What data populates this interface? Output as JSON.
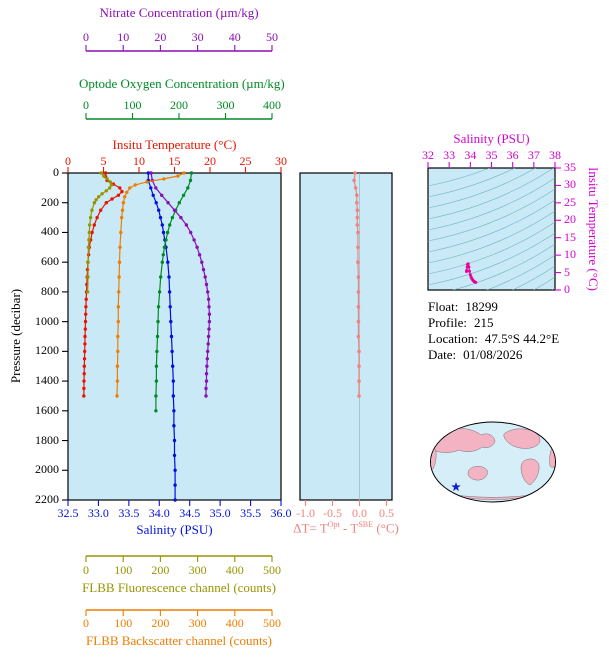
{
  "colors": {
    "nitrate": "#8a0fb4",
    "oxygen": "#008a25",
    "temperature": "#e81400",
    "salinity": "#0011dd",
    "fluorescence": "#989400",
    "backscatter": "#ef7d00",
    "delta_t": "#f2837c",
    "ts_axis": "#d400d4",
    "ts_curve": "#e80296",
    "plot_bg": "#c9e9f6",
    "contour": "#74b4c8",
    "frame": "#000000",
    "map_land": "#f3b3c3",
    "map_ocean": "#d6eef8",
    "star": "#1520c8"
  },
  "axes": {
    "nitrate": {
      "title": "Nitrate Concentration (µm/kg)",
      "ticks": [
        "0",
        "10",
        "20",
        "30",
        "40",
        "50"
      ]
    },
    "oxygen": {
      "title": "Optode Oxygen Concentration (µm/kg)",
      "ticks": [
        "0",
        "100",
        "200",
        "300",
        "400"
      ]
    },
    "temperature": {
      "title": "Insitu Temperature (°C)",
      "ticks": [
        "0",
        "5",
        "10",
        "15",
        "20",
        "25",
        "30"
      ]
    },
    "pressure": {
      "title": "Pressure (decibar)",
      "ticks": [
        "0",
        "200",
        "400",
        "600",
        "800",
        "1000",
        "1200",
        "1400",
        "1600",
        "1800",
        "2000",
        "2200"
      ]
    },
    "salinity": {
      "title": "Salinity (PSU)",
      "ticks": [
        "32.5",
        "33.0",
        "33.5",
        "34.0",
        "34.5",
        "35.0",
        "35.5",
        "36.0"
      ]
    },
    "delta_t": {
      "title_parts": {
        "p1": "ΔT= T",
        "sup1": "Opt",
        "p2": " - T",
        "sup2": "SBE",
        "p3": " (°C)"
      },
      "ticks": [
        "-1.0",
        "-0.5",
        "0.0",
        "0.5"
      ]
    },
    "fluorescence": {
      "title": "FLBB Fluorescence channel (counts)",
      "ticks": [
        "0",
        "100",
        "200",
        "300",
        "400",
        "500"
      ]
    },
    "backscatter": {
      "title": "FLBB Backscatter channel (counts)",
      "ticks": [
        "0",
        "100",
        "200",
        "300",
        "400",
        "500"
      ]
    },
    "ts_salinity": {
      "title": "Salinity (PSU)",
      "ticks": [
        "32",
        "33",
        "34",
        "35",
        "36",
        "37",
        "38"
      ]
    },
    "ts_temperature": {
      "title": "Insitu Temperature (°C)",
      "ticks": [
        "0",
        "5",
        "10",
        "15",
        "20",
        "25",
        "30",
        "35"
      ]
    }
  },
  "info": {
    "float_label": "Float:",
    "float_value": "18299",
    "profile_label": "Profile:",
    "profile_value": "215",
    "location_label": "Location:",
    "location_value": "47.5°S 44.2°E",
    "date_label": "Date:",
    "date_value": "01/08/2026"
  },
  "chart_data": {
    "type": "line",
    "title": "Argo float 18299 profile 215 — vertical profiles, Optode-SBE temperature difference, T-S diagram and location map",
    "y_axis": {
      "label": "Pressure (decibar)",
      "range": [
        0,
        2200
      ],
      "inverted": true,
      "points_format": "[pressure_db, value]"
    },
    "profile_series": [
      {
        "name": "Insitu Temperature",
        "units": "°C",
        "color_key": "temperature",
        "x_range": [
          0,
          30
        ],
        "points": [
          [
            0,
            5.3
          ],
          [
            25,
            5.3
          ],
          [
            50,
            5.5
          ],
          [
            75,
            6.4
          ],
          [
            100,
            7.3
          ],
          [
            125,
            7.6
          ],
          [
            150,
            7.1
          ],
          [
            175,
            6.2
          ],
          [
            200,
            5.4
          ],
          [
            250,
            4.6
          ],
          [
            300,
            4.1
          ],
          [
            350,
            3.7
          ],
          [
            400,
            3.4
          ],
          [
            450,
            3.2
          ],
          [
            500,
            3.0
          ],
          [
            550,
            2.9
          ],
          [
            600,
            2.8
          ],
          [
            650,
            2.75
          ],
          [
            700,
            2.7
          ],
          [
            750,
            2.65
          ],
          [
            800,
            2.6
          ],
          [
            850,
            2.56
          ],
          [
            900,
            2.52
          ],
          [
            950,
            2.49
          ],
          [
            1000,
            2.46
          ],
          [
            1050,
            2.43
          ],
          [
            1100,
            2.4
          ],
          [
            1150,
            2.38
          ],
          [
            1200,
            2.35
          ],
          [
            1250,
            2.33
          ],
          [
            1300,
            2.3
          ],
          [
            1350,
            2.28
          ],
          [
            1400,
            2.26
          ],
          [
            1450,
            2.24
          ],
          [
            1500,
            2.22
          ]
        ]
      },
      {
        "name": "Salinity",
        "units": "PSU",
        "color_key": "salinity",
        "x_range": [
          32.5,
          36.0
        ],
        "points": [
          [
            0,
            33.82
          ],
          [
            50,
            33.82
          ],
          [
            100,
            33.86
          ],
          [
            150,
            33.9
          ],
          [
            200,
            33.95
          ],
          [
            250,
            33.99
          ],
          [
            300,
            34.02
          ],
          [
            350,
            34.05
          ],
          [
            400,
            34.07
          ],
          [
            450,
            34.09
          ],
          [
            500,
            34.11
          ],
          [
            600,
            34.14
          ],
          [
            700,
            34.16
          ],
          [
            800,
            34.17
          ],
          [
            900,
            34.18
          ],
          [
            1000,
            34.19
          ],
          [
            1100,
            34.2
          ],
          [
            1200,
            34.21
          ],
          [
            1300,
            34.22
          ],
          [
            1400,
            34.23
          ],
          [
            1500,
            34.23
          ],
          [
            1600,
            34.24
          ],
          [
            1700,
            34.24
          ],
          [
            1800,
            34.25
          ],
          [
            1900,
            34.25
          ],
          [
            2000,
            34.26
          ],
          [
            2100,
            34.26
          ],
          [
            2200,
            34.26
          ]
        ]
      },
      {
        "name": "Optode Oxygen Concentration",
        "units": "µm/kg",
        "color_key": "oxygen",
        "x_range": [
          0,
          400
        ],
        "points": [
          [
            0,
            232
          ],
          [
            50,
            230
          ],
          [
            100,
            225
          ],
          [
            150,
            217
          ],
          [
            200,
            209
          ],
          [
            250,
            202
          ],
          [
            300,
            196
          ],
          [
            350,
            191
          ],
          [
            400,
            187
          ],
          [
            450,
            184
          ],
          [
            500,
            181
          ],
          [
            550,
            179
          ],
          [
            600,
            177
          ],
          [
            700,
            174
          ],
          [
            800,
            172
          ],
          [
            900,
            170
          ],
          [
            1000,
            169
          ],
          [
            1100,
            168
          ],
          [
            1200,
            167
          ],
          [
            1300,
            166
          ],
          [
            1400,
            166
          ],
          [
            1500,
            165
          ],
          [
            1600,
            165
          ]
        ]
      },
      {
        "name": "Nitrate Concentration",
        "units": "µm/kg",
        "color_key": "nitrate",
        "x_range": [
          0,
          50
        ],
        "points": [
          [
            0,
            19.5
          ],
          [
            50,
            19.8
          ],
          [
            100,
            20.6
          ],
          [
            150,
            22.0
          ],
          [
            200,
            23.5
          ],
          [
            250,
            25.0
          ],
          [
            300,
            26.5
          ],
          [
            350,
            27.8
          ],
          [
            400,
            28.8
          ],
          [
            450,
            29.6
          ],
          [
            500,
            30.3
          ],
          [
            550,
            30.9
          ],
          [
            600,
            31.4
          ],
          [
            650,
            31.8
          ],
          [
            700,
            32.2
          ],
          [
            750,
            32.5
          ],
          [
            800,
            32.8
          ],
          [
            850,
            33.0
          ],
          [
            900,
            33.1
          ],
          [
            950,
            33.2
          ],
          [
            1000,
            33.2
          ],
          [
            1050,
            33.1
          ],
          [
            1100,
            33.0
          ],
          [
            1150,
            32.9
          ],
          [
            1200,
            32.8
          ],
          [
            1250,
            32.7
          ],
          [
            1300,
            32.6
          ],
          [
            1350,
            32.5
          ],
          [
            1400,
            32.5
          ],
          [
            1450,
            32.4
          ],
          [
            1500,
            32.4
          ]
        ]
      },
      {
        "name": "FLBB Fluorescence channel",
        "units": "counts",
        "color_key": "fluorescence",
        "x_range": [
          0,
          500
        ],
        "points": [
          [
            0,
            78
          ],
          [
            20,
            84
          ],
          [
            40,
            92
          ],
          [
            60,
            99
          ],
          [
            80,
            102
          ],
          [
            100,
            98
          ],
          [
            120,
            90
          ],
          [
            140,
            80
          ],
          [
            160,
            72
          ],
          [
            180,
            66
          ],
          [
            200,
            62
          ],
          [
            250,
            56
          ],
          [
            300,
            53
          ],
          [
            350,
            51
          ],
          [
            400,
            50
          ],
          [
            450,
            49
          ],
          [
            500,
            48
          ],
          [
            600,
            47
          ],
          [
            700,
            47
          ],
          [
            800,
            46
          ]
        ]
      },
      {
        "name": "FLBB Backscatter channel",
        "units": "counts",
        "color_key": "backscatter",
        "x_range": [
          0,
          500
        ],
        "points": [
          [
            0,
            272
          ],
          [
            20,
            258
          ],
          [
            40,
            225
          ],
          [
            60,
            185
          ],
          [
            80,
            158
          ],
          [
            100,
            145
          ],
          [
            130,
            138
          ],
          [
            160,
            133
          ],
          [
            200,
            130
          ],
          [
            250,
            128
          ],
          [
            300,
            126
          ],
          [
            400,
            124
          ],
          [
            500,
            122
          ],
          [
            600,
            121
          ],
          [
            700,
            120
          ],
          [
            800,
            119
          ],
          [
            900,
            118
          ],
          [
            1000,
            118
          ],
          [
            1100,
            117
          ],
          [
            1200,
            117
          ],
          [
            1300,
            116
          ],
          [
            1400,
            116
          ],
          [
            1500,
            115
          ]
        ]
      }
    ],
    "delta_t_panel": {
      "x_label": "ΔT = T_Opt - T_SBE (°C)",
      "x_range": [
        -1.0,
        0.5
      ],
      "points_format": "[pressure_db, delta_deg_c]",
      "points": [
        [
          0,
          -0.08
        ],
        [
          50,
          -0.1
        ],
        [
          100,
          -0.07
        ],
        [
          150,
          -0.05
        ],
        [
          200,
          -0.05
        ],
        [
          250,
          -0.04
        ],
        [
          300,
          -0.04
        ],
        [
          350,
          -0.04
        ],
        [
          400,
          -0.03
        ],
        [
          500,
          -0.03
        ],
        [
          600,
          -0.03
        ],
        [
          700,
          -0.02
        ],
        [
          800,
          -0.02
        ],
        [
          900,
          -0.02
        ],
        [
          1000,
          -0.02
        ],
        [
          1100,
          -0.02
        ],
        [
          1200,
          -0.01
        ],
        [
          1300,
          -0.01
        ],
        [
          1400,
          -0.01
        ],
        [
          1500,
          -0.01
        ]
      ]
    },
    "ts_diagram": {
      "x_label": "Salinity (PSU)",
      "x_range": [
        32,
        38
      ],
      "y_label": "Insitu Temperature (°C)",
      "y_range": [
        0,
        35
      ],
      "points_format": "[salinity_psu, temperature_c]",
      "points": [
        [
          33.82,
          5.3
        ],
        [
          33.83,
          5.6
        ],
        [
          33.85,
          6.6
        ],
        [
          33.87,
          7.4
        ],
        [
          33.9,
          7.5
        ],
        [
          33.93,
          6.6
        ],
        [
          33.96,
          5.4
        ],
        [
          34.0,
          4.4
        ],
        [
          34.03,
          3.8
        ],
        [
          34.06,
          3.4
        ],
        [
          34.09,
          3.1
        ],
        [
          34.12,
          2.8
        ],
        [
          34.15,
          2.6
        ],
        [
          34.18,
          2.45
        ],
        [
          34.21,
          2.32
        ],
        [
          34.23,
          2.25
        ],
        [
          34.26,
          2.18
        ]
      ]
    }
  }
}
